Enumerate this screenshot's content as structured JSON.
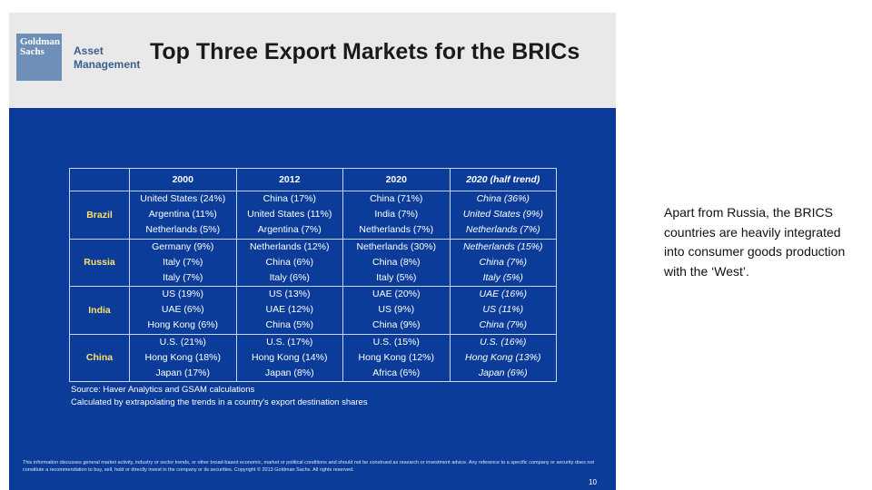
{
  "slide": {
    "logo_lines": [
      "Goldman",
      "Sachs"
    ],
    "brand_lines": [
      "Asset",
      "Management"
    ],
    "title": "Top Three Export Markets for the BRICs",
    "table": {
      "headers": [
        "",
        "2000",
        "2012",
        "2020",
        "2020 (half trend)"
      ],
      "rows": [
        {
          "country": "Brazil",
          "cells": [
            [
              "United States (24%)",
              "Argentina (11%)",
              "Netherlands (5%)"
            ],
            [
              "China (17%)",
              "United States (11%)",
              "Argentina (7%)"
            ],
            [
              "China (71%)",
              "India (7%)",
              "Netherlands (7%)"
            ],
            [
              "China (36%)",
              "United States (9%)",
              "Netherlands (7%)"
            ]
          ]
        },
        {
          "country": "Russia",
          "cells": [
            [
              "Germany (9%)",
              "Italy (7%)",
              "Italy (7%)"
            ],
            [
              "Netherlands (12%)",
              "China (6%)",
              "Italy (6%)"
            ],
            [
              "Netherlands (30%)",
              "China (8%)",
              "Italy (5%)"
            ],
            [
              "Netherlands (15%)",
              "China (7%)",
              "Italy (5%)"
            ]
          ]
        },
        {
          "country": "India",
          "cells": [
            [
              "US (19%)",
              "UAE (6%)",
              "Hong Kong (6%)"
            ],
            [
              "US (13%)",
              "UAE (12%)",
              "China (5%)"
            ],
            [
              "UAE (20%)",
              "US (9%)",
              "China (9%)"
            ],
            [
              "UAE (16%)",
              "US (11%)",
              "China (7%)"
            ]
          ]
        },
        {
          "country": "China",
          "cells": [
            [
              "U.S. (21%)",
              "Hong Kong (18%)",
              "Japan (17%)"
            ],
            [
              "U.S. (17%)",
              "Hong Kong (14%)",
              "Japan (8%)"
            ],
            [
              "U.S. (15%)",
              "Hong Kong (12%)",
              "Africa (6%)"
            ],
            [
              "U.S. (16%)",
              "Hong Kong (13%)",
              "Japan (6%)"
            ]
          ]
        }
      ]
    },
    "notes": [
      "Source: Haver Analytics and GSAM calculations",
      "Calculated by extrapolating the trends in a country's export destination shares"
    ],
    "disclaimer": "This information discusses general market activity, industry or sector trends, or other broad-based economic, market or political conditions and should not be construed as research or investment advice. Any reference to a specific company or security does not constitute a recommendation to buy, sell, hold or directly invest in the company or its securities. Copyright © 2013 Goldman Sachs. All rights reserved.",
    "page_number": "10"
  },
  "side_text": "Apart from Russia, the BRICS countries are heavily integrated into consumer goods production with the ‘West’."
}
